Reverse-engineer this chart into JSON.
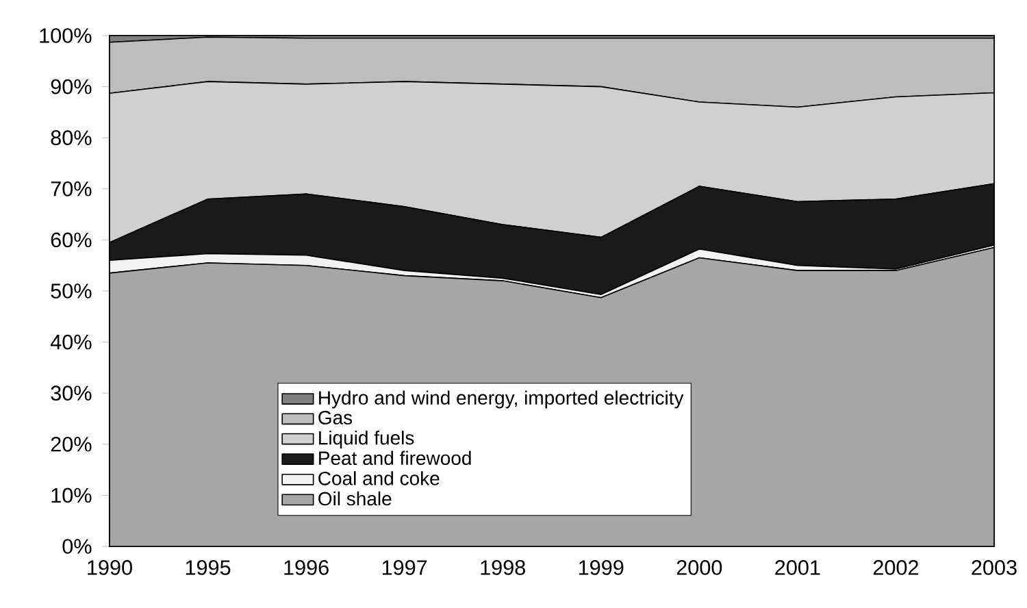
{
  "chart_data": {
    "type": "area",
    "stacked": true,
    "categories": [
      "1990",
      "1995",
      "1996",
      "1997",
      "1998",
      "1999",
      "2000",
      "2001",
      "2002",
      "2003"
    ],
    "ylim": [
      0,
      100
    ],
    "yticks": [
      {
        "value": 0,
        "label": "0%"
      },
      {
        "value": 10,
        "label": "10%"
      },
      {
        "value": 20,
        "label": "20%"
      },
      {
        "value": 30,
        "label": "30%"
      },
      {
        "value": 40,
        "label": "40%"
      },
      {
        "value": 50,
        "label": "50%"
      },
      {
        "value": 60,
        "label": "60%"
      },
      {
        "value": 70,
        "label": "70%"
      },
      {
        "value": 80,
        "label": "80%"
      },
      {
        "value": 90,
        "label": "90%"
      },
      {
        "value": 100,
        "label": "100%"
      }
    ],
    "legend": "bottom",
    "series": [
      {
        "name": "Oil shale",
        "color": "#a6a6a6",
        "values": [
          53.5,
          55.5,
          55,
          53,
          52,
          48.7,
          56.5,
          54,
          54,
          58.5
        ]
      },
      {
        "name": "Coal and coke",
        "color": "#f2f2f2",
        "values": [
          2.5,
          1.8,
          2,
          1,
          0.5,
          0.6,
          1.7,
          1,
          0.3,
          0.5
        ]
      },
      {
        "name": "Peat and firewood",
        "color": "#1a1a1a",
        "values": [
          3.5,
          10.7,
          12,
          12.5,
          10.5,
          11.2,
          12.3,
          12.5,
          13.7,
          12
        ]
      },
      {
        "name": "Liquid fuels",
        "color": "#d0d0d0",
        "values": [
          29.2,
          23,
          21.5,
          24.5,
          27.5,
          29.5,
          16.5,
          18.5,
          20,
          17.8
        ]
      },
      {
        "name": "Gas",
        "color": "#bdbdbd",
        "values": [
          10,
          8.7,
          9,
          8.5,
          9,
          9.5,
          12.5,
          13.5,
          11.5,
          10.7
        ]
      },
      {
        "name": "Hydro and wind energy, imported electricity",
        "color": "#7f7f7f",
        "values": [
          1.3,
          0.3,
          0.5,
          0.5,
          0.5,
          0.5,
          0.5,
          0.5,
          0.5,
          0.5
        ]
      }
    ]
  }
}
